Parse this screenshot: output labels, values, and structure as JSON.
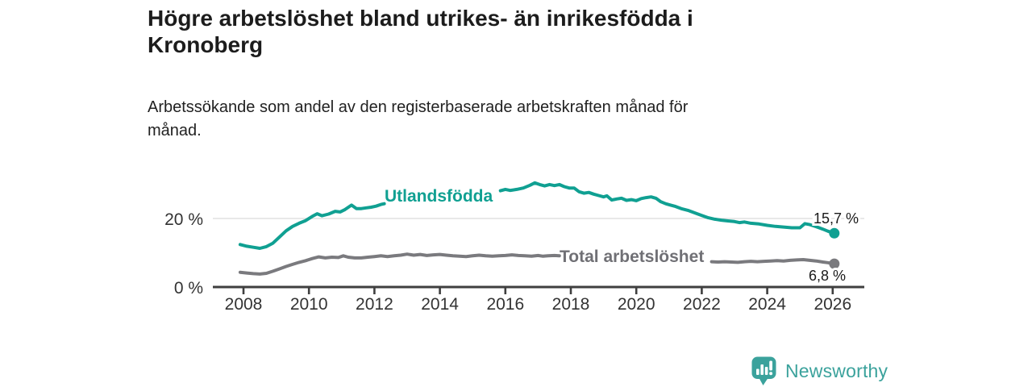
{
  "header": {
    "title_lines": [
      "Högre arbetslöshet bland utrikes- än inrikesfödda i",
      "Kronoberg"
    ],
    "subtitle_lines": [
      "Arbetssökande som andel av den registerbaserade arbetskraften månad för",
      "månad."
    ]
  },
  "footer": {
    "brand": "Newsworthy",
    "brand_color": "#3ba29c",
    "logo_icon": "bar-chart-speech-bubble-icon"
  },
  "chart_data": {
    "type": "line",
    "title": "",
    "xlabel": "",
    "ylabel": "",
    "x_axis": {
      "ticks": [
        "2008",
        "2010",
        "2012",
        "2014",
        "2016",
        "2018",
        "2020",
        "2022",
        "2024",
        "2026"
      ],
      "tick_years": [
        2008,
        2010,
        2012,
        2014,
        2016,
        2018,
        2020,
        2022,
        2024,
        2026
      ],
      "range": [
        2007.05,
        2026.97
      ]
    },
    "y_axis": {
      "ticks": [
        "0 %",
        "20 %"
      ],
      "tick_values": [
        0,
        20
      ],
      "range": [
        0,
        32
      ],
      "gridline_at": 20,
      "grid": "single horizontal gridline at 20%"
    },
    "legend_position": "inline-labels-on-lines",
    "series": [
      {
        "name": "Utlandsfödda",
        "color": "#10a092",
        "end_label": "15,7 %",
        "end_value": 15.7,
        "label_gap_years": [
          2012.3,
          2015.85
        ],
        "points": [
          [
            2007.9,
            12.4
          ],
          [
            2008.1,
            11.9
          ],
          [
            2008.3,
            11.6
          ],
          [
            2008.5,
            11.3
          ],
          [
            2008.7,
            11.8
          ],
          [
            2008.9,
            12.8
          ],
          [
            2009.1,
            14.6
          ],
          [
            2009.3,
            16.4
          ],
          [
            2009.5,
            17.7
          ],
          [
            2009.7,
            18.6
          ],
          [
            2009.9,
            19.4
          ],
          [
            2010.1,
            20.6
          ],
          [
            2010.25,
            21.4
          ],
          [
            2010.4,
            20.8
          ],
          [
            2010.6,
            21.3
          ],
          [
            2010.8,
            22.1
          ],
          [
            2010.95,
            21.9
          ],
          [
            2011.1,
            22.6
          ],
          [
            2011.3,
            23.9
          ],
          [
            2011.45,
            22.9
          ],
          [
            2011.6,
            22.9
          ],
          [
            2011.75,
            23.1
          ],
          [
            2011.9,
            23.3
          ],
          [
            2012.05,
            23.6
          ],
          [
            2012.2,
            24.1
          ],
          [
            2012.3,
            24.3
          ],
          [
            2015.85,
            28.1
          ],
          [
            2016,
            28.5
          ],
          [
            2016.15,
            28.2
          ],
          [
            2016.35,
            28.5
          ],
          [
            2016.55,
            28.9
          ],
          [
            2016.75,
            29.7
          ],
          [
            2016.9,
            30.4
          ],
          [
            2017.05,
            29.9
          ],
          [
            2017.2,
            29.5
          ],
          [
            2017.35,
            29.9
          ],
          [
            2017.5,
            29.6
          ],
          [
            2017.65,
            29.9
          ],
          [
            2017.8,
            29.3
          ],
          [
            2017.95,
            28.9
          ],
          [
            2018.1,
            28.9
          ],
          [
            2018.25,
            27.8
          ],
          [
            2018.4,
            27.4
          ],
          [
            2018.55,
            27.6
          ],
          [
            2018.7,
            27.1
          ],
          [
            2018.85,
            26.7
          ],
          [
            2019,
            26.3
          ],
          [
            2019.1,
            26.6
          ],
          [
            2019.25,
            25.4
          ],
          [
            2019.4,
            25.7
          ],
          [
            2019.55,
            25.9
          ],
          [
            2019.7,
            25.3
          ],
          [
            2019.85,
            25.5
          ],
          [
            2020,
            25.2
          ],
          [
            2020.15,
            25.8
          ],
          [
            2020.3,
            26.1
          ],
          [
            2020.45,
            26.3
          ],
          [
            2020.6,
            25.9
          ],
          [
            2020.75,
            24.9
          ],
          [
            2020.9,
            24.3
          ],
          [
            2021.05,
            23.9
          ],
          [
            2021.2,
            23.5
          ],
          [
            2021.4,
            22.8
          ],
          [
            2021.6,
            22.3
          ],
          [
            2021.8,
            21.6
          ],
          [
            2022,
            20.9
          ],
          [
            2022.2,
            20.2
          ],
          [
            2022.4,
            19.8
          ],
          [
            2022.6,
            19.5
          ],
          [
            2022.8,
            19.3
          ],
          [
            2023,
            19.1
          ],
          [
            2023.15,
            18.8
          ],
          [
            2023.3,
            19.0
          ],
          [
            2023.5,
            18.6
          ],
          [
            2023.75,
            18.4
          ],
          [
            2024,
            18.0
          ],
          [
            2024.25,
            17.7
          ],
          [
            2024.5,
            17.5
          ],
          [
            2024.75,
            17.3
          ],
          [
            2025,
            17.3
          ],
          [
            2025.15,
            18.5
          ],
          [
            2025.3,
            18.2
          ],
          [
            2025.5,
            17.6
          ],
          [
            2025.7,
            16.9
          ],
          [
            2025.85,
            16.3
          ],
          [
            2026.05,
            15.7
          ]
        ]
      },
      {
        "name": "Total arbetslöshet",
        "color": "#7a7a7e",
        "end_label": "6,8 %",
        "end_value": 6.8,
        "label_gap_years": [
          2017.65,
          2022.3
        ],
        "points": [
          [
            2007.9,
            4.3
          ],
          [
            2008.1,
            4.1
          ],
          [
            2008.3,
            3.9
          ],
          [
            2008.5,
            3.8
          ],
          [
            2008.7,
            4.0
          ],
          [
            2008.9,
            4.6
          ],
          [
            2009.1,
            5.3
          ],
          [
            2009.3,
            6.0
          ],
          [
            2009.5,
            6.6
          ],
          [
            2009.7,
            7.2
          ],
          [
            2009.9,
            7.7
          ],
          [
            2010.1,
            8.3
          ],
          [
            2010.3,
            8.8
          ],
          [
            2010.5,
            8.5
          ],
          [
            2010.7,
            8.7
          ],
          [
            2010.9,
            8.6
          ],
          [
            2011.05,
            9.1
          ],
          [
            2011.2,
            8.7
          ],
          [
            2011.4,
            8.5
          ],
          [
            2011.6,
            8.5
          ],
          [
            2011.8,
            8.7
          ],
          [
            2012,
            8.9
          ],
          [
            2012.2,
            9.1
          ],
          [
            2012.4,
            8.9
          ],
          [
            2012.6,
            9.1
          ],
          [
            2012.8,
            9.3
          ],
          [
            2013,
            9.6
          ],
          [
            2013.2,
            9.3
          ],
          [
            2013.4,
            9.5
          ],
          [
            2013.6,
            9.2
          ],
          [
            2013.8,
            9.4
          ],
          [
            2014,
            9.5
          ],
          [
            2014.2,
            9.3
          ],
          [
            2014.4,
            9.1
          ],
          [
            2014.6,
            9.0
          ],
          [
            2014.8,
            8.9
          ],
          [
            2015,
            9.1
          ],
          [
            2015.2,
            9.3
          ],
          [
            2015.4,
            9.1
          ],
          [
            2015.6,
            9.0
          ],
          [
            2015.8,
            9.1
          ],
          [
            2016,
            9.2
          ],
          [
            2016.2,
            9.4
          ],
          [
            2016.4,
            9.2
          ],
          [
            2016.6,
            9.1
          ],
          [
            2016.8,
            9.0
          ],
          [
            2017,
            9.2
          ],
          [
            2017.15,
            9.0
          ],
          [
            2017.3,
            9.1
          ],
          [
            2017.5,
            9.2
          ],
          [
            2017.65,
            9.1
          ],
          [
            2022.3,
            7.4
          ],
          [
            2022.5,
            7.3
          ],
          [
            2022.7,
            7.4
          ],
          [
            2022.9,
            7.3
          ],
          [
            2023.1,
            7.2
          ],
          [
            2023.3,
            7.4
          ],
          [
            2023.5,
            7.5
          ],
          [
            2023.7,
            7.4
          ],
          [
            2023.9,
            7.5
          ],
          [
            2024.1,
            7.6
          ],
          [
            2024.3,
            7.7
          ],
          [
            2024.5,
            7.6
          ],
          [
            2024.7,
            7.8
          ],
          [
            2024.9,
            7.9
          ],
          [
            2025.1,
            8.0
          ],
          [
            2025.3,
            7.8
          ],
          [
            2025.5,
            7.6
          ],
          [
            2025.7,
            7.3
          ],
          [
            2025.85,
            7.1
          ],
          [
            2026.05,
            6.8
          ]
        ]
      }
    ]
  }
}
